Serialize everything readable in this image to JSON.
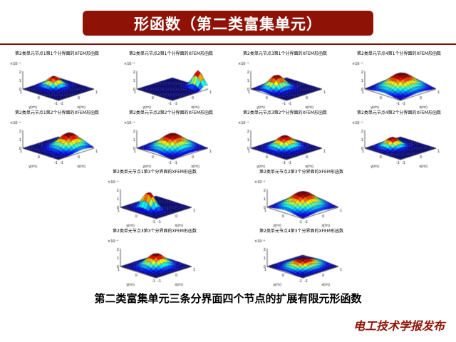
{
  "slide": {
    "title": "形函数（第二类富集单元）",
    "caption": "第二类富集单元三条分界面四个节点的扩展有限元形函数",
    "footer_credit": "电工技术学报发布",
    "colors": {
      "background": "#ffffff",
      "banner_bg": "#8e1306",
      "banner_text": "#ffffff",
      "divider": "#7a1004",
      "caption_text": "#000000",
      "footer_text": "#8e1306",
      "surface_low": "#00008f",
      "surface_high": "#8f0000"
    }
  },
  "chart_data": {
    "type": "heatmap",
    "note": "Grid of 12 MATLAB-style 3D surface (mesh) plots of XFEM shape functions over the square [-1,1]x[-1,1], jet colormap, each a Gaussian-like bump; amplitude units are 1e-3.",
    "shared_axes": {
      "xlabel": "x(m)",
      "ylabel": "y(m)",
      "x_range": [
        -1,
        1
      ],
      "y_range": [
        -1,
        1
      ],
      "x_ticks": [
        -1,
        0,
        1
      ],
      "y_ticks": [
        1,
        0,
        -1
      ],
      "z_ticks": [
        0,
        1,
        2
      ],
      "z_scale_label": "×10⁻³",
      "grid": true,
      "legend": "none"
    },
    "plots": [
      {
        "row": 1,
        "title": "第2类单元节点1第1个分界面的XFEM形函数",
        "peak": {
          "x": 0.1,
          "y": 0.35,
          "sx": 0.28,
          "sy": 0.28,
          "amp": 1.2
        }
      },
      {
        "row": 1,
        "title": "第2类单元节点2第1个分界面的XFEM形函数",
        "peak": {
          "x": 0.85,
          "y": -0.6,
          "sx": 0.18,
          "sy": 0.25,
          "amp": 2.0
        }
      },
      {
        "row": 1,
        "title": "第2类单元节点3第1个分界面的XFEM形函数",
        "peak": {
          "x": -0.25,
          "y": 0.3,
          "sx": 0.35,
          "sy": 0.3,
          "amp": 1.6
        }
      },
      {
        "row": 1,
        "title": "第2类单元节点4第1个分界面的XFEM形函数",
        "peak": {
          "x": 0.05,
          "y": 0.0,
          "sx": 0.55,
          "sy": 0.5,
          "amp": 1.8
        }
      },
      {
        "row": 2,
        "title": "第2类单元节点1第2个分界面的XFEM形函数",
        "peak": {
          "x": 0.35,
          "y": -0.25,
          "sx": 0.45,
          "sy": 0.4,
          "amp": 1.7
        }
      },
      {
        "row": 2,
        "title": "第2类单元节点2第2个分界面的XFEM形函数",
        "peak": {
          "x": 0.0,
          "y": 0.0,
          "sx": 0.5,
          "sy": 0.45,
          "amp": 1.7
        }
      },
      {
        "row": 2,
        "title": "第2类单元节点3第2个分界面的XFEM形函数",
        "peak": {
          "x": 0.0,
          "y": 0.1,
          "sx": 0.38,
          "sy": 0.33,
          "amp": 1.4
        }
      },
      {
        "row": 2,
        "title": "第2类单元节点4第2个分界面的XFEM形函数",
        "peak": {
          "x": -0.1,
          "y": 0.35,
          "sx": 0.3,
          "sy": 0.28,
          "amp": 1.1
        }
      },
      {
        "row": 3,
        "title": "第2类单元节点1第3个分界面的XFEM形函数",
        "peak": {
          "x": -0.35,
          "y": 0.05,
          "sx": 0.2,
          "sy": 0.3,
          "amp": 2.0
        }
      },
      {
        "row": 3,
        "title": "第2类单元节点2第3个分界面的XFEM形函数",
        "peak": {
          "x": 0.0,
          "y": 0.0,
          "sx": 0.55,
          "sy": 0.5,
          "amp": 1.8
        }
      },
      {
        "row": 4,
        "title": "第2类单元节点3第3个分界面的XFEM形函数",
        "peak": {
          "x": 0.0,
          "y": 0.0,
          "sx": 0.4,
          "sy": 0.35,
          "amp": 1.5
        }
      },
      {
        "row": 4,
        "title": "第2类单元节点4第3个分界面的XFEM形函数",
        "peak": {
          "x": 0.05,
          "y": 0.0,
          "sx": 0.5,
          "sy": 0.4,
          "amp": 0.9
        }
      }
    ]
  }
}
